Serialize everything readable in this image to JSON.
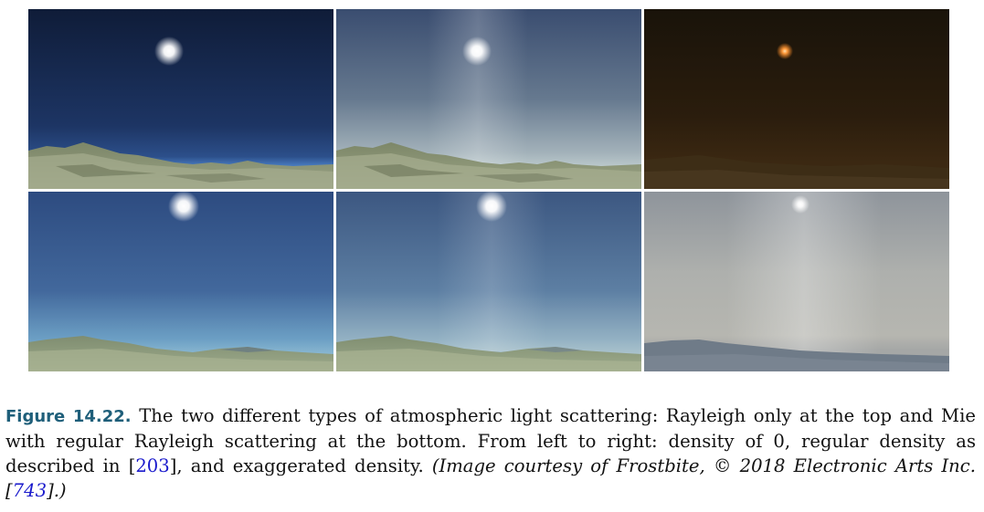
{
  "figure": {
    "label": "Figure 14.22.",
    "caption_text": "The two different types of atmospheric light scattering: Rayleigh only at the top and Mie with regular Rayleigh scattering at the bottom. From left to right: density of 0, regular density as described in ",
    "ref1_open": "[",
    "ref1": "203",
    "ref1_close": "]",
    "caption_text2": ", and exaggerated density. ",
    "courtesy_a": "(Image courtesy of Frostbite, ",
    "copyright_symbol": "©",
    "courtesy_b": " 2018 Electronic Arts Inc. ",
    "ref2_open": "[",
    "ref2": "743",
    "ref2_close": "].)"
  },
  "panels": [
    {
      "row": "top",
      "column": "left",
      "sky_top": "#0f1c38",
      "sky_bottom": "#233f70",
      "horizon": "#4d82c8",
      "ground": "#8e9a78",
      "sun": "#ffffff"
    },
    {
      "row": "top",
      "column": "middle",
      "sky_top": "#3c4f72",
      "sky_bottom": "#95a7b4",
      "horizon": "#b6c4c8",
      "ground": "#8f9a79",
      "sun": "#ffffff"
    },
    {
      "row": "top",
      "column": "right",
      "sky_top": "#1a1409",
      "sky_bottom": "#35230f",
      "horizon": "#3c2913",
      "ground": "#3a2c16",
      "sun": "#ffa64d"
    },
    {
      "row": "bottom",
      "column": "left",
      "sky_top": "#2e4d82",
      "sky_bottom": "#5c8eb8",
      "horizon": "#7fb0cf",
      "ground": "#8f9e7f",
      "sun": "#ffffff"
    },
    {
      "row": "bottom",
      "column": "middle",
      "sky_top": "#3d5882",
      "sky_bottom": "#87a6bc",
      "horizon": "#a8c1cc",
      "ground": "#8f9e80",
      "sun": "#ffffff"
    },
    {
      "row": "bottom",
      "column": "right",
      "sky_top": "#8f959b",
      "sky_bottom": "#b8b8b2",
      "horizon": "#a5a6a3",
      "ground": "#6e7a88",
      "sun": "#ffffff"
    }
  ]
}
